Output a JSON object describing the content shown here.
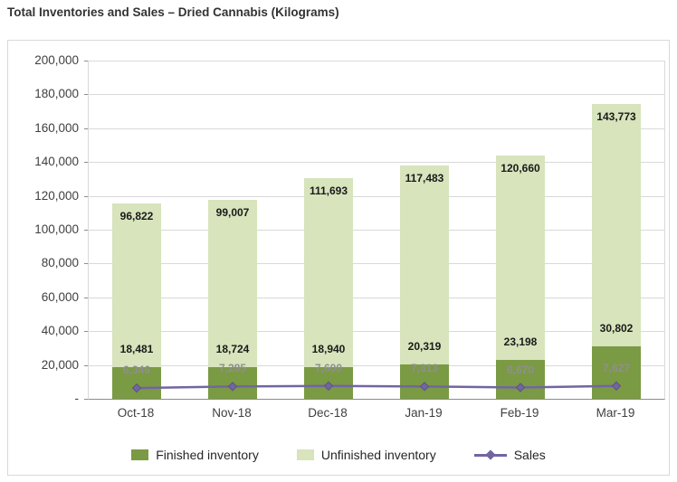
{
  "title": "Total Inventories and Sales – Dried Cannabis (Kilograms)",
  "colors": {
    "grid": "#d9d9d9",
    "axis_text": "#404040",
    "data_label": "#1a1a1a",
    "sales_label": "#8f8f8f",
    "axis_line": "#8c8c8c"
  },
  "chart_data": {
    "type": "bar",
    "subtype": "stacked-bar-with-line",
    "title": "Total Inventories and Sales – Dried Cannabis (Kilograms)",
    "categories": [
      "Oct-18",
      "Nov-18",
      "Dec-18",
      "Jan-19",
      "Feb-19",
      "Mar-19"
    ],
    "series": [
      {
        "name": "Finished inventory",
        "type": "bar",
        "color": "#7b9a44",
        "values": [
          18481,
          18724,
          18940,
          20319,
          23198,
          30802
        ]
      },
      {
        "name": "Unfinished inventory",
        "type": "bar",
        "color": "#d7e4bc",
        "values": [
          96822,
          99007,
          111693,
          117483,
          120660,
          143773
        ]
      },
      {
        "name": "Sales",
        "type": "line",
        "color": "#7265a2",
        "values": [
          6346,
          7285,
          7600,
          7313,
          6670,
          7627
        ]
      }
    ],
    "stacked": true,
    "ylim": [
      0,
      200000
    ],
    "ytick_step": 20000,
    "ytick_labels": [
      "-",
      "20,000",
      "40,000",
      "60,000",
      "80,000",
      "100,000",
      "120,000",
      "140,000",
      "160,000",
      "180,000",
      "200,000"
    ],
    "grid": "horizontal",
    "legend_position": "bottom"
  }
}
